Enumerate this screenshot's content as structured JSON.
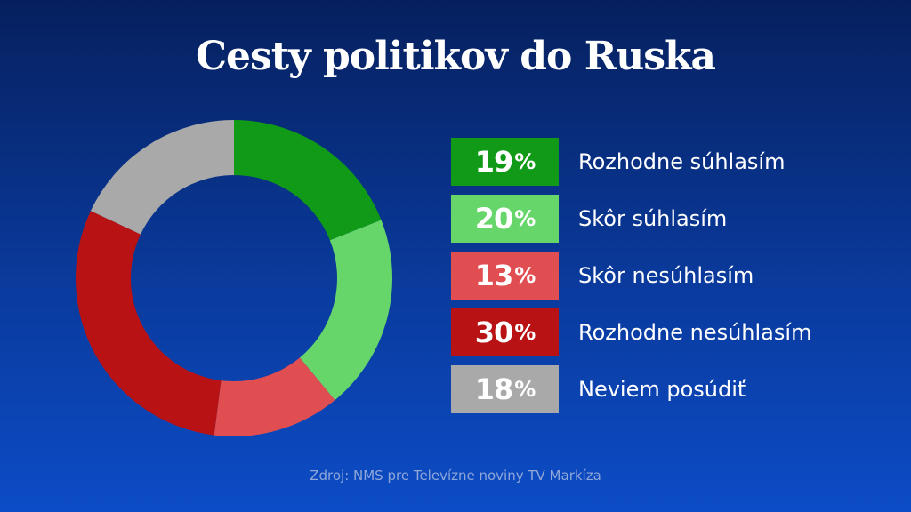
{
  "title": "Cesty politikov do Ruska",
  "source": "Zdroj: NMS pre Televízne noviny TV Markíza",
  "chart_data": {
    "type": "pie",
    "variant": "donut",
    "title": "Cesty politikov do Ruska",
    "unit": "%",
    "legend_position": "right",
    "slices": [
      {
        "label": "Rozhodne súhlasím",
        "value": 19,
        "color": "#109a17"
      },
      {
        "label": "Skôr súhlasím",
        "value": 20,
        "color": "#66d66a"
      },
      {
        "label": "Skôr nesúhlasím",
        "value": 13,
        "color": "#e04e52"
      },
      {
        "label": "Rozhodne nesúhlasím",
        "value": 30,
        "color": "#b81214"
      },
      {
        "label": "Neviem posúdiť",
        "value": 18,
        "color": "#a9a9a9"
      }
    ]
  }
}
